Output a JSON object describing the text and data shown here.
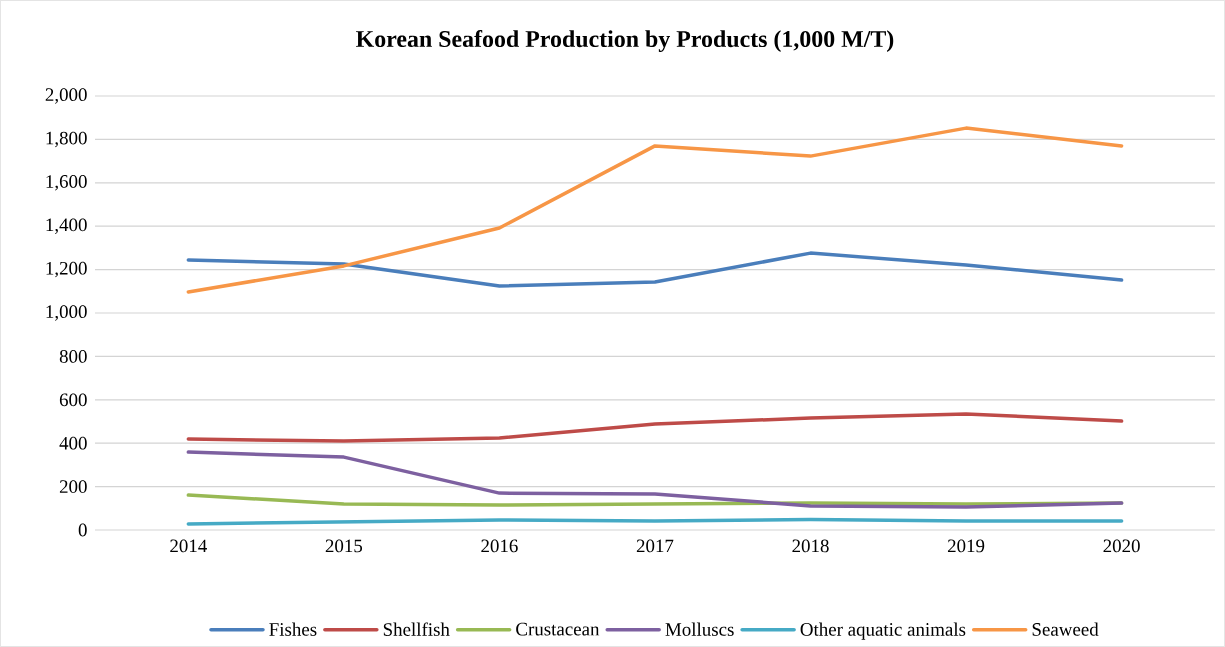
{
  "chart_data": {
    "type": "line",
    "title": "Korean Seafood Production by Products (1,000 M/T)",
    "categories": [
      "2014",
      "2015",
      "2016",
      "2017",
      "2018",
      "2019",
      "2020"
    ],
    "series": [
      {
        "name": "Fishes",
        "color": "#4a7ebb",
        "values": [
          1244,
          1226,
          1124,
          1143,
          1276,
          1221,
          1152
        ]
      },
      {
        "name": "Shellfish",
        "color": "#be4b48",
        "values": [
          419,
          410,
          424,
          488,
          516,
          535,
          502
        ]
      },
      {
        "name": "Crustacean",
        "color": "#98b954",
        "values": [
          161,
          120,
          115,
          120,
          124,
          120,
          124
        ]
      },
      {
        "name": "Molluscs",
        "color": "#7d60a0",
        "values": [
          359,
          336,
          170,
          166,
          111,
          106,
          124
        ]
      },
      {
        "name": "Other aquatic animals",
        "color": "#46aac5",
        "values": [
          28,
          37,
          46,
          41,
          48,
          41,
          41
        ]
      },
      {
        "name": "Seaweed",
        "color": "#f79646",
        "values": [
          1097,
          1217,
          1392,
          1770,
          1723,
          1852,
          1770
        ]
      }
    ],
    "ylim": [
      0,
      2000
    ],
    "yticks": [
      0,
      200,
      400,
      600,
      800,
      {
        "value": 1000,
        "label": "1,000"
      },
      {
        "value": 1200,
        "label": "1,200"
      },
      {
        "value": 1400,
        "label": "1,400"
      },
      {
        "value": 1600,
        "label": "1,600"
      },
      {
        "value": 1800,
        "label": "1,800"
      },
      {
        "value": 2000,
        "label": "2,000"
      }
    ],
    "grid": "y",
    "legend": "bottom",
    "marker": "none",
    "line_style": "solid"
  }
}
